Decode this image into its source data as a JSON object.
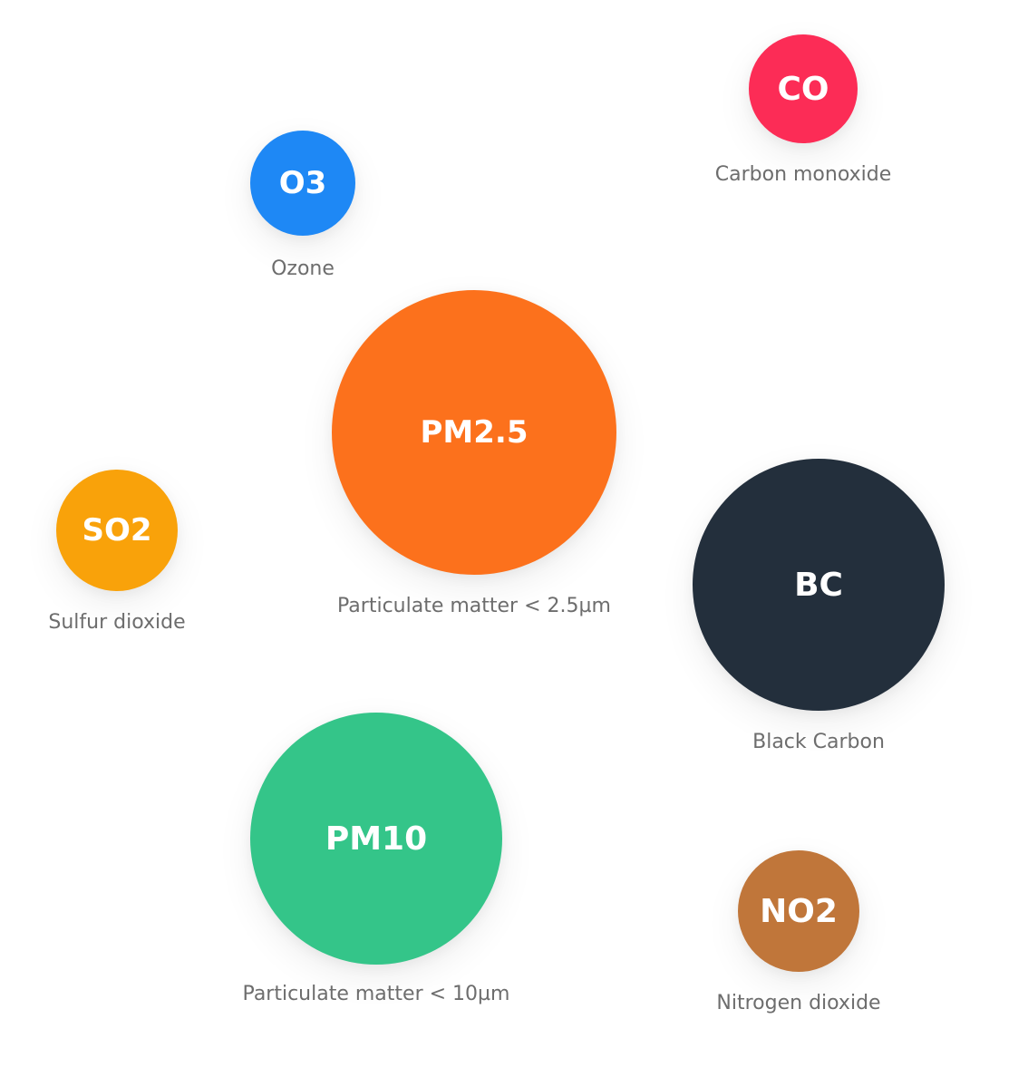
{
  "pollutants": [
    {
      "code": "CO",
      "name": "Carbon monoxide",
      "color": "#fc2c56"
    },
    {
      "code": "O3",
      "name": "Ozone",
      "color": "#1e88f5"
    },
    {
      "code": "PM2.5",
      "name": "Particulate matter < 2.5µm",
      "color": "#fc711c"
    },
    {
      "code": "SO2",
      "name": "Sulfur dioxide",
      "color": "#f9a20a"
    },
    {
      "code": "BC",
      "name": "Black Carbon",
      "color": "#232f3c"
    },
    {
      "code": "PM10",
      "name": "Particulate matter < 10µm",
      "color": "#34c589"
    },
    {
      "code": "NO2",
      "name": "Nitrogen dioxide",
      "color": "#c0763a"
    }
  ]
}
